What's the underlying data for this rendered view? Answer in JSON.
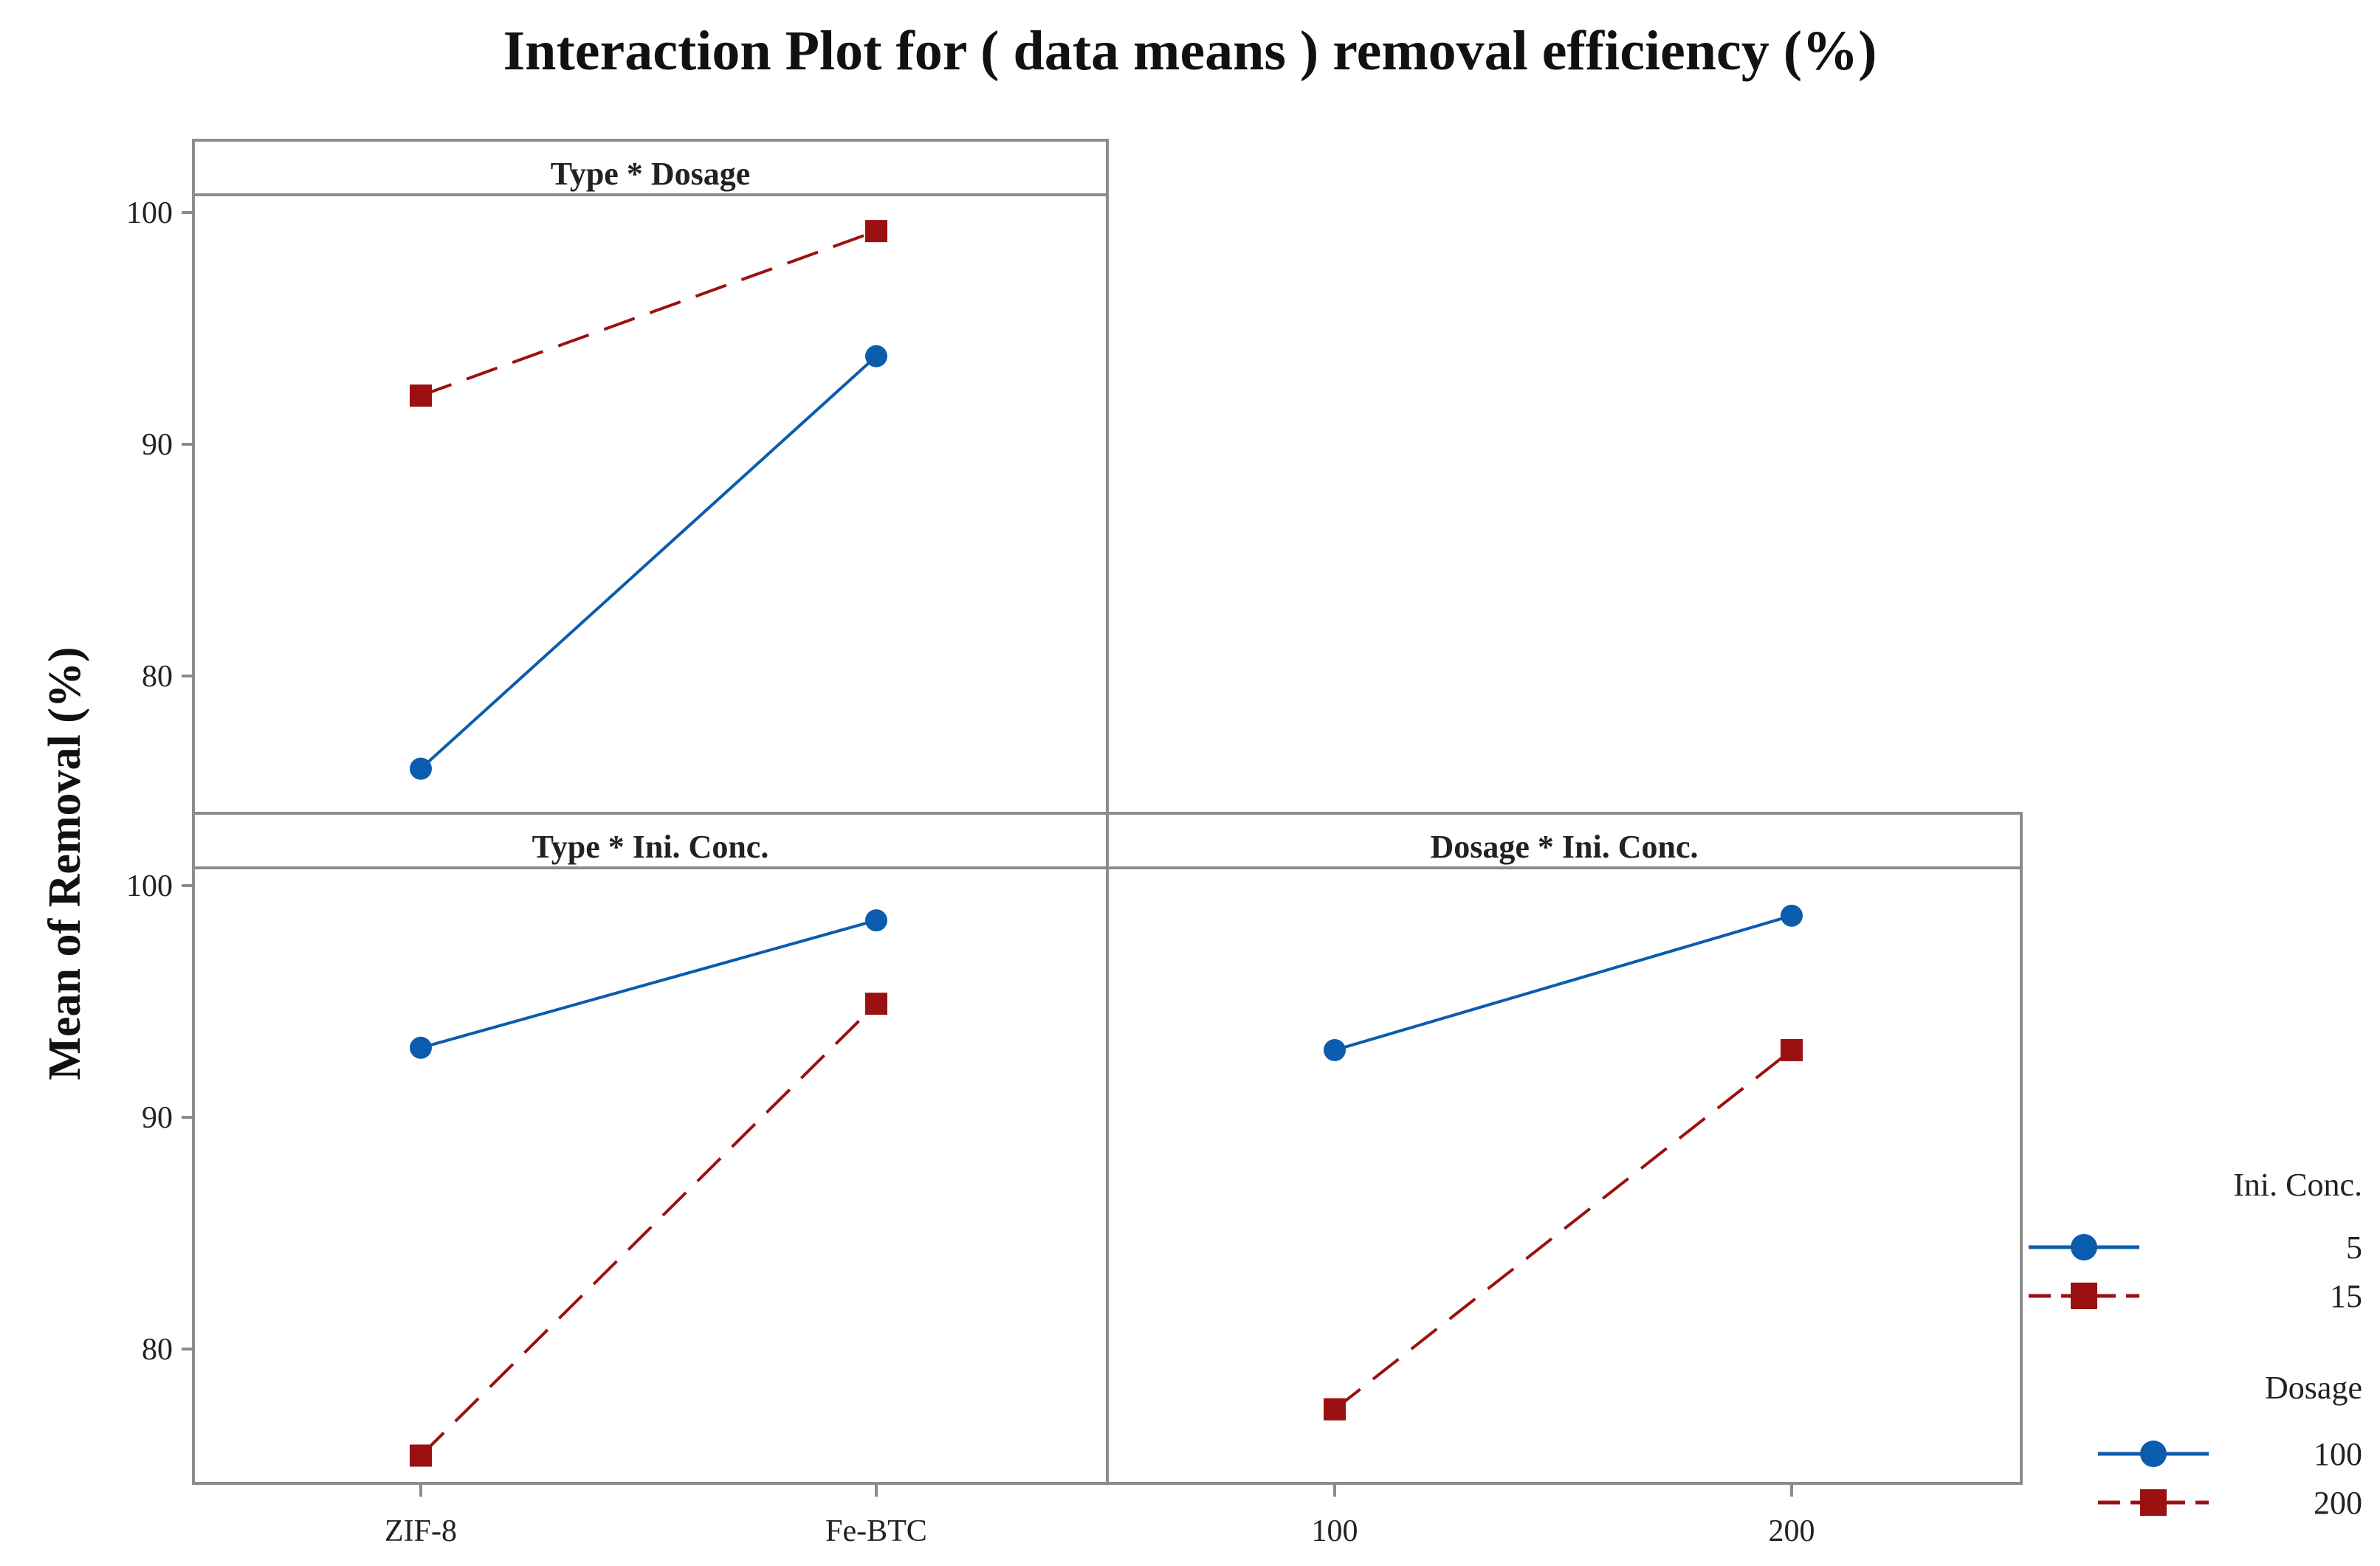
{
  "colors": {
    "series_a": "#0b5cad",
    "series_b": "#9b1010",
    "frame": "#8c8c8c",
    "text": "#222222"
  },
  "chart_data": {
    "type": "line",
    "title": "Interaction Plot for ( data means ) removal efficiency (%)",
    "ylabel": "Mean of Removal (%)",
    "ylim": [
      74,
      103
    ],
    "yticks": [
      80,
      90,
      100
    ],
    "yticks_labels": [
      "80",
      "90",
      "100"
    ],
    "panels": [
      {
        "id": "type-dosage",
        "title": "Type * Dosage",
        "categories": [
          "ZIF-8",
          "Fe-BTC"
        ],
        "legend_group": "Dosage",
        "series": [
          {
            "name": "100",
            "style": "solid",
            "marker": "circle",
            "values": [
              76.0,
              93.8
            ]
          },
          {
            "name": "200",
            "style": "dashed",
            "marker": "square",
            "values": [
              92.1,
              99.2
            ]
          }
        ]
      },
      {
        "id": "type-iniconc",
        "title": "Type * Ini. Conc.",
        "categories": [
          "ZIF-8",
          "Fe-BTC"
        ],
        "legend_group": "Ini. Conc.",
        "series": [
          {
            "name": "5",
            "style": "solid",
            "marker": "circle",
            "values": [
              93.0,
              98.5
            ]
          },
          {
            "name": "15",
            "style": "dashed",
            "marker": "square",
            "values": [
              75.4,
              94.9
            ]
          }
        ]
      },
      {
        "id": "dosage-iniconc",
        "title": "Dosage * Ini. Conc.",
        "categories": [
          "100",
          "200"
        ],
        "legend_group": "Ini. Conc.",
        "series": [
          {
            "name": "5",
            "style": "solid",
            "marker": "circle",
            "values": [
              92.9,
              98.7
            ]
          },
          {
            "name": "15",
            "style": "dashed",
            "marker": "square",
            "values": [
              77.4,
              92.9
            ]
          }
        ]
      }
    ],
    "legends": [
      {
        "title": "Ini. Conc.",
        "entries": [
          {
            "label": "5",
            "marker": "circle"
          },
          {
            "label": "15",
            "marker": "square"
          }
        ]
      },
      {
        "title": "Dosage",
        "entries": [
          {
            "label": "100",
            "marker": "circle"
          },
          {
            "label": "200",
            "marker": "square"
          }
        ]
      }
    ]
  }
}
